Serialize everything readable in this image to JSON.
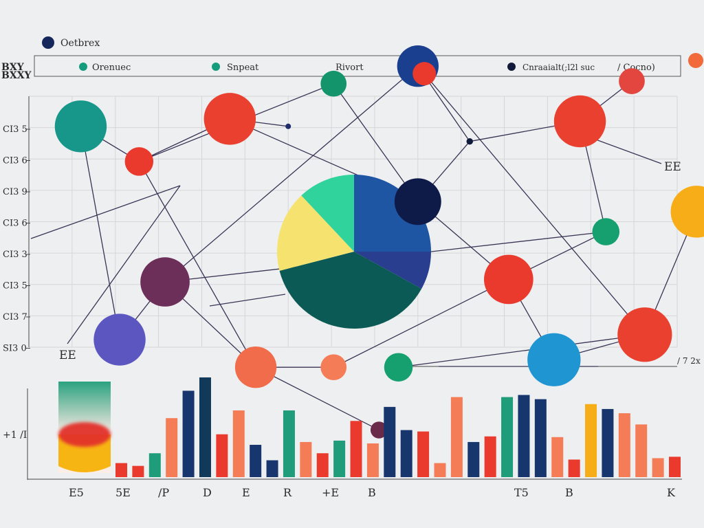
{
  "chart_data": {
    "type": "bar",
    "title": "Oetbrex",
    "title_icon_color": "#15275a",
    "legend": {
      "placement": "top",
      "entries": [
        {
          "label": "Orenuec",
          "color": "#159c7c"
        },
        {
          "label": "Snpeat",
          "color": "#159c7c"
        },
        {
          "label": "Rivort",
          "color": ""
        },
        {
          "label": "Cnraaialt(;l2l suc",
          "color": "#111a3a"
        },
        {
          "label": "/ Cocno)",
          "color": ""
        }
      ]
    },
    "ylabel": "BXY\nBXXY",
    "y_tick_labels": [
      "CI3 5",
      "CI3 6",
      "CI3 9",
      "CI3 6",
      "CI3 3",
      "CI3 5",
      "CI3 7",
      "SI3 0"
    ],
    "grid": true,
    "side_labels": {
      "right_upper": "EE",
      "right_axis": "/ 7 2x",
      "left_inner": "EE",
      "bottom_left": "+1 /I"
    },
    "x_tick_labels": [
      "E5",
      "5E",
      "/P",
      "D",
      "E",
      "R",
      "+E",
      "B",
      "T5",
      "B",
      "K"
    ],
    "pie": {
      "slices": [
        {
          "value": 25,
          "color": "#1f56a4"
        },
        {
          "value": 8,
          "color": "#293e8e"
        },
        {
          "value": 38,
          "color": "#0c5a56"
        },
        {
          "value": 17,
          "color": "#f6e36f"
        },
        {
          "value": 12,
          "color": "#30d39c"
        }
      ]
    },
    "nodes": [
      {
        "x": 0.08,
        "y": 0.88,
        "r": 0.04,
        "color": "#16978a"
      },
      {
        "x": 0.17,
        "y": 0.74,
        "r": 0.022,
        "color": "#e93a2d"
      },
      {
        "x": 0.31,
        "y": 0.91,
        "r": 0.04,
        "color": "#e94030"
      },
      {
        "x": 0.4,
        "y": 0.88,
        "r": 0.004,
        "color": "#1f2d6d"
      },
      {
        "x": 0.47,
        "y": 1.05,
        "r": 0.02,
        "color": "#13946b"
      },
      {
        "x": 0.6,
        "y": 1.12,
        "r": 0.032,
        "color": "#1b3f8f"
      },
      {
        "x": 0.61,
        "y": 1.09,
        "r": 0.018,
        "color": "#e93a2d"
      },
      {
        "x": 0.93,
        "y": 1.06,
        "r": 0.02,
        "color": "#e2463e"
      },
      {
        "x": 0.85,
        "y": 0.9,
        "r": 0.04,
        "color": "#e94030"
      },
      {
        "x": 0.68,
        "y": 0.82,
        "r": 0.005,
        "color": "#0f1a3a"
      },
      {
        "x": 0.6,
        "y": 0.58,
        "r": 0.036,
        "color": "#0e1a48"
      },
      {
        "x": 1.03,
        "y": 0.54,
        "r": 0.04,
        "color": "#f6ad18"
      },
      {
        "x": 0.89,
        "y": 0.46,
        "r": 0.021,
        "color": "#16a070"
      },
      {
        "x": 0.74,
        "y": 0.27,
        "r": 0.038,
        "color": "#e93a2d"
      },
      {
        "x": 0.21,
        "y": 0.26,
        "r": 0.038,
        "color": "#6b2f5a"
      },
      {
        "x": 0.14,
        "y": 0.03,
        "r": 0.04,
        "color": "#5c56c0"
      },
      {
        "x": 0.35,
        "y": -0.08,
        "r": 0.032,
        "color": "#f06c4a"
      },
      {
        "x": 0.47,
        "y": -0.08,
        "r": 0.02,
        "color": "#f47c56"
      },
      {
        "x": 0.57,
        "y": -0.08,
        "r": 0.022,
        "color": "#16a070"
      },
      {
        "x": 0.81,
        "y": -0.05,
        "r": 0.041,
        "color": "#1f95d2"
      },
      {
        "x": 0.95,
        "y": 0.05,
        "r": 0.042,
        "color": "#e94030"
      },
      {
        "x": 0.54,
        "y": -0.33,
        "r": 0.013,
        "color": "#6a2a4a"
      }
    ],
    "bars": {
      "ylim": [
        0,
        140
      ],
      "values": [
        {
          "v": 20,
          "color": "#e93a2d"
        },
        {
          "v": 16,
          "color": "#e93a2d"
        },
        {
          "v": 34,
          "color": "#1f9c79"
        },
        {
          "v": 84,
          "color": "#f47c56"
        },
        {
          "v": 123,
          "color": "#17366e"
        },
        {
          "v": 142,
          "color": "#113a5a"
        },
        {
          "v": 61,
          "color": "#e93a2d"
        },
        {
          "v": 95,
          "color": "#f47c56"
        },
        {
          "v": 46,
          "color": "#17366e"
        },
        {
          "v": 24,
          "color": "#17366e"
        },
        {
          "v": 95,
          "color": "#1f9c79"
        },
        {
          "v": 50,
          "color": "#f47c56"
        },
        {
          "v": 34,
          "color": "#e93a2d"
        },
        {
          "v": 52,
          "color": "#1f9c79"
        },
        {
          "v": 80,
          "color": "#e93a2d"
        },
        {
          "v": 48,
          "color": "#f47c56"
        },
        {
          "v": 100,
          "color": "#17366e"
        },
        {
          "v": 67,
          "color": "#17366e"
        },
        {
          "v": 65,
          "color": "#e93a2d"
        },
        {
          "v": 20,
          "color": "#f47c56"
        },
        {
          "v": 114,
          "color": "#f47c56"
        },
        {
          "v": 50,
          "color": "#17366e"
        },
        {
          "v": 58,
          "color": "#e93a2d"
        },
        {
          "v": 114,
          "color": "#1f9c79"
        },
        {
          "v": 117,
          "color": "#17366e"
        },
        {
          "v": 111,
          "color": "#17366e"
        },
        {
          "v": 57,
          "color": "#f47c56"
        },
        {
          "v": 25,
          "color": "#e93a2d"
        },
        {
          "v": 104,
          "color": "#f6ad18"
        },
        {
          "v": 97,
          "color": "#17366e"
        },
        {
          "v": 91,
          "color": "#f47c56"
        },
        {
          "v": 75,
          "color": "#f47c56"
        },
        {
          "v": 27,
          "color": "#f47c56"
        },
        {
          "v": 29,
          "color": "#e93a2d"
        }
      ]
    }
  }
}
